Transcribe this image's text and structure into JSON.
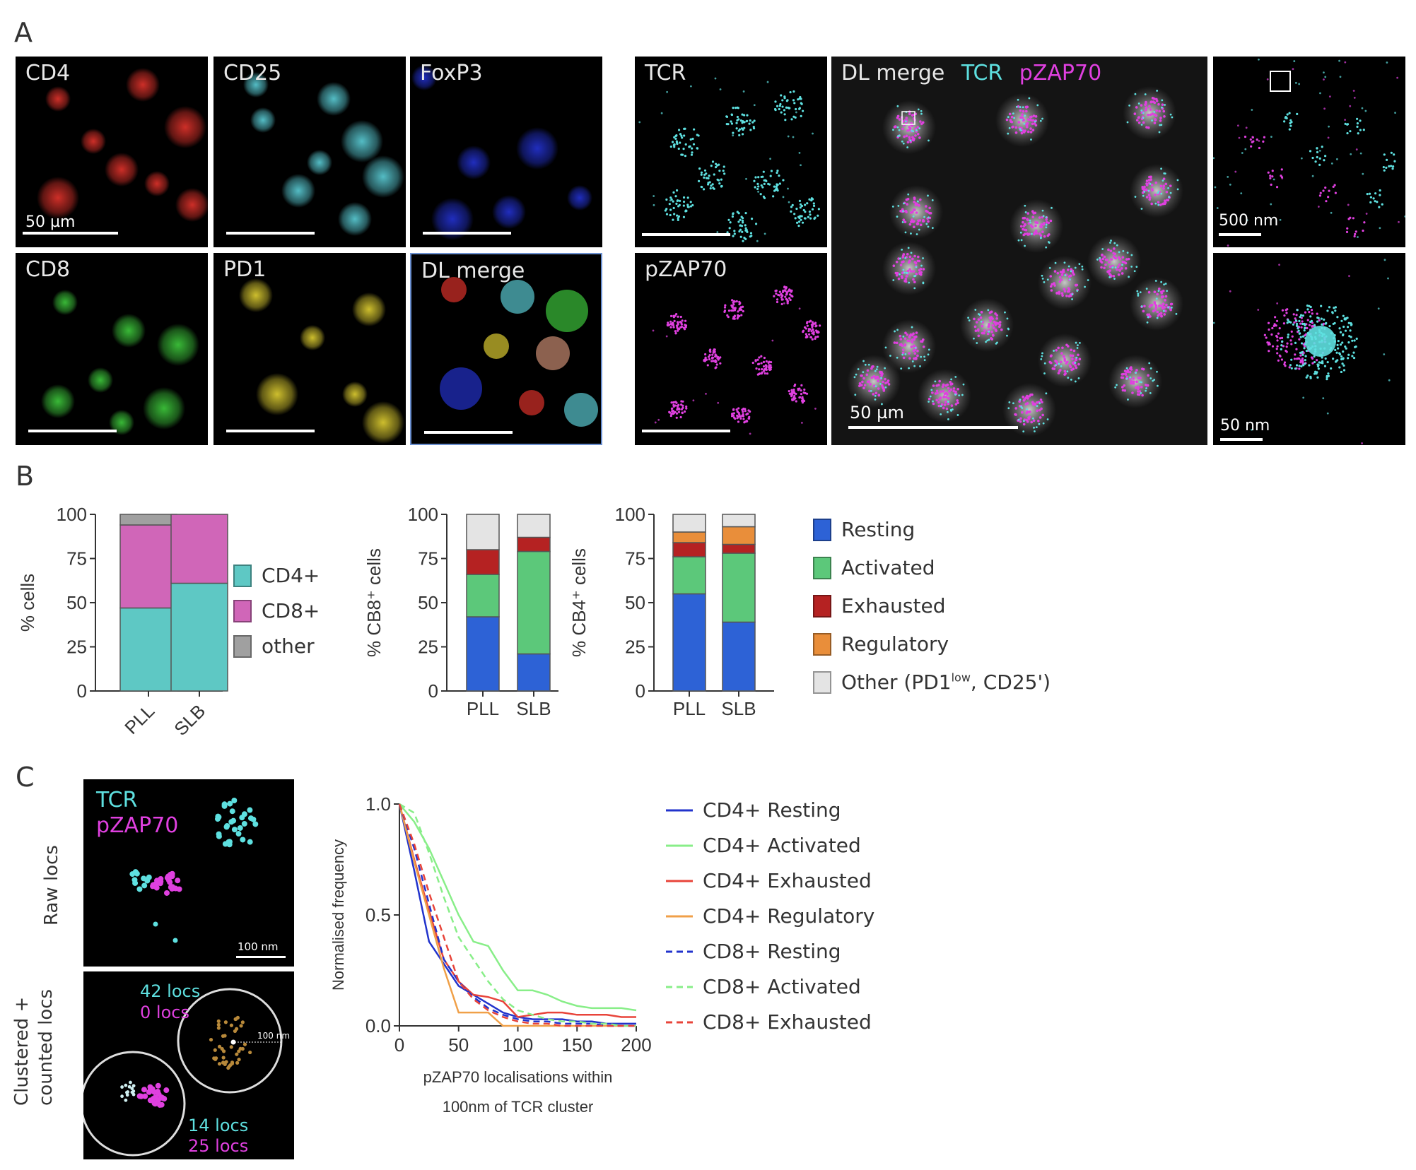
{
  "panel_labels": {
    "a": "A",
    "b": "B",
    "c": "C"
  },
  "panelA": {
    "tiles": [
      {
        "name": "cd4",
        "label": "CD4",
        "color": "#d8312a"
      },
      {
        "name": "cd25",
        "label": "CD25",
        "color": "#58c6cf"
      },
      {
        "name": "foxp3",
        "label": "FoxP3",
        "color": "#2230c8"
      },
      {
        "name": "cd8",
        "label": "CD8",
        "color": "#3cc23a"
      },
      {
        "name": "pd1",
        "label": "PD1",
        "color": "#d8c830"
      },
      {
        "name": "dl-merge",
        "label": "DL merge",
        "color": "#c88a70"
      },
      {
        "name": "tcr",
        "label": "TCR",
        "color": "#5ee0e0"
      },
      {
        "name": "pzap70",
        "label": "pZAP70",
        "color": "#e040e0"
      }
    ],
    "merge_large": {
      "label": "DL merge",
      "tcr": "TCR",
      "pzap70": "pZAP70",
      "tcr_color": "#5ee0e0",
      "pzap_color": "#e040e0"
    },
    "scalebars": {
      "cells": "50 µm",
      "merge": "50 µm",
      "zoom1": "500 nm",
      "zoom2": "50 nm"
    }
  },
  "panelB": {
    "chart1": {
      "ylabel": "% cells",
      "yticks": [
        "0",
        "25",
        "50",
        "75",
        "100"
      ],
      "legend": [
        {
          "label": "CD4+",
          "color": "#5ec8c4"
        },
        {
          "label": "CD8+",
          "color": "#d066b8"
        },
        {
          "label": "other",
          "color": "#a0a0a0"
        }
      ]
    },
    "chart2": {
      "ylabel": "% CB8⁺ cells",
      "yticks": [
        "0",
        "25",
        "50",
        "75",
        "100"
      ]
    },
    "chart3": {
      "ylabel": "% CB4⁺ cells",
      "yticks": [
        "0",
        "25",
        "50",
        "75",
        "100"
      ]
    },
    "legend": [
      {
        "label": "Resting",
        "color": "#2d62d6"
      },
      {
        "label": "Activated",
        "color": "#5cc87a"
      },
      {
        "label": "Exhausted",
        "color": "#b52222"
      },
      {
        "label": "Regulatory",
        "color": "#e98e3a"
      },
      {
        "label": "Other (PD1",
        "sup": "low",
        "tail": ", CD25')",
        "color": "#e4e4e4"
      }
    ]
  },
  "panelC": {
    "raw": {
      "tcr": "TCR",
      "pzap70": "pZAP70",
      "side": "Raw locs",
      "scale": "100 nm"
    },
    "clustered": {
      "side1": "Clustered +",
      "side2": "counted locs",
      "a1": "42 locs",
      "a2": "0 locs",
      "b1": "14 locs",
      "b2": "25 locs",
      "radius": "100 nm"
    },
    "legend": [
      {
        "label": "CD4+ Resting",
        "color": "#2233cc",
        "dash": false
      },
      {
        "label": "CD4+ Activated",
        "color": "#88ee88",
        "dash": false
      },
      {
        "label": "CD4+ Exhausted",
        "color": "#e8443a",
        "dash": false
      },
      {
        "label": "CD4+ Regulatory",
        "color": "#f0a048",
        "dash": false
      },
      {
        "label": "CD8+ Resting",
        "color": "#2233cc",
        "dash": true
      },
      {
        "label": "CD8+ Activated",
        "color": "#88ee88",
        "dash": true
      },
      {
        "label": "CD8+ Exhausted",
        "color": "#e8443a",
        "dash": true
      }
    ]
  },
  "chart_data": [
    {
      "type": "bar",
      "stacked": true,
      "ylabel": "% cells",
      "categories": [
        "PLL",
        "SLB"
      ],
      "ylim": [
        0,
        100
      ],
      "series": [
        {
          "name": "CD4+",
          "color": "#5ec8c4",
          "values": [
            47,
            61
          ]
        },
        {
          "name": "CD8+",
          "color": "#d066b8",
          "values": [
            47,
            39
          ]
        },
        {
          "name": "other",
          "color": "#a0a0a0",
          "values": [
            6,
            0
          ]
        }
      ]
    },
    {
      "type": "bar",
      "stacked": true,
      "ylabel": "% CB8⁺ cells",
      "categories": [
        "PLL",
        "SLB"
      ],
      "ylim": [
        0,
        100
      ],
      "series": [
        {
          "name": "Resting",
          "color": "#2d62d6",
          "values": [
            42,
            21
          ]
        },
        {
          "name": "Activated",
          "color": "#5cc87a",
          "values": [
            24,
            58
          ]
        },
        {
          "name": "Exhausted",
          "color": "#b52222",
          "values": [
            14,
            8
          ]
        },
        {
          "name": "Regulatory",
          "color": "#e98e3a",
          "values": [
            0,
            0
          ]
        },
        {
          "name": "Other (PD1low, CD25')",
          "color": "#e4e4e4",
          "values": [
            20,
            13
          ]
        }
      ]
    },
    {
      "type": "bar",
      "stacked": true,
      "ylabel": "% CB4⁺ cells",
      "categories": [
        "PLL",
        "SLB"
      ],
      "ylim": [
        0,
        100
      ],
      "series": [
        {
          "name": "Resting",
          "color": "#2d62d6",
          "values": [
            55,
            39
          ]
        },
        {
          "name": "Activated",
          "color": "#5cc87a",
          "values": [
            21,
            39
          ]
        },
        {
          "name": "Exhausted",
          "color": "#b52222",
          "values": [
            8,
            5
          ]
        },
        {
          "name": "Regulatory",
          "color": "#e98e3a",
          "values": [
            6,
            10
          ]
        },
        {
          "name": "Other (PD1low, CD25')",
          "color": "#e4e4e4",
          "values": [
            10,
            7
          ]
        }
      ]
    },
    {
      "type": "line",
      "xlabel": "pZAP70 localisations within 100nm of TCR cluster",
      "ylabel": "Normalised frequency",
      "xlim": [
        0,
        200
      ],
      "ylim": [
        0,
        1.0
      ],
      "xticks": [
        0,
        50,
        100,
        150,
        200
      ],
      "yticks": [
        0.0,
        0.5,
        1.0
      ],
      "x": [
        0,
        12.5,
        25,
        37.5,
        50,
        62.5,
        75,
        87.5,
        100,
        112.5,
        125,
        137.5,
        150,
        162.5,
        175,
        187.5,
        200
      ],
      "series": [
        {
          "name": "CD4+ Resting",
          "color": "#2233cc",
          "dash": false,
          "values": [
            1.0,
            0.7,
            0.38,
            0.28,
            0.18,
            0.14,
            0.1,
            0.06,
            0.04,
            0.03,
            0.03,
            0.03,
            0.02,
            0.02,
            0.01,
            0.01,
            0.01
          ]
        },
        {
          "name": "CD4+ Activated",
          "color": "#88ee88",
          "dash": false,
          "values": [
            1.0,
            0.92,
            0.8,
            0.65,
            0.5,
            0.38,
            0.36,
            0.25,
            0.16,
            0.16,
            0.14,
            0.11,
            0.09,
            0.08,
            0.08,
            0.08,
            0.07
          ]
        },
        {
          "name": "CD4+ Exhausted",
          "color": "#e8443a",
          "dash": false,
          "values": [
            1.0,
            0.75,
            0.52,
            0.3,
            0.2,
            0.14,
            0.13,
            0.11,
            0.04,
            0.05,
            0.06,
            0.06,
            0.05,
            0.05,
            0.05,
            0.04,
            0.04
          ]
        },
        {
          "name": "CD4+ Regulatory",
          "color": "#f0a048",
          "dash": false,
          "values": [
            1.0,
            0.74,
            0.5,
            0.26,
            0.06,
            0.06,
            0.06,
            0.0,
            0.0,
            0.0,
            0.0,
            0.0,
            0.0,
            0.0,
            0.0,
            0.0,
            0.0
          ]
        },
        {
          "name": "CD8+ Resting",
          "color": "#2233cc",
          "dash": true,
          "values": [
            1.0,
            0.8,
            0.55,
            0.3,
            0.2,
            0.13,
            0.08,
            0.05,
            0.03,
            0.02,
            0.02,
            0.01,
            0.01,
            0.01,
            0.0,
            0.0,
            0.0
          ]
        },
        {
          "name": "CD8+ Activated",
          "color": "#88ee88",
          "dash": true,
          "values": [
            1.0,
            0.96,
            0.78,
            0.58,
            0.4,
            0.3,
            0.2,
            0.12,
            0.07,
            0.05,
            0.03,
            0.02,
            0.02,
            0.01,
            0.01,
            0.0,
            0.0
          ]
        },
        {
          "name": "CD8+ Exhausted",
          "color": "#e8443a",
          "dash": true,
          "values": [
            1.0,
            0.82,
            0.6,
            0.4,
            0.2,
            0.12,
            0.07,
            0.04,
            0.02,
            0.01,
            0.01,
            0.0,
            0.0,
            0.0,
            0.0,
            0.0,
            0.0
          ]
        }
      ]
    }
  ]
}
